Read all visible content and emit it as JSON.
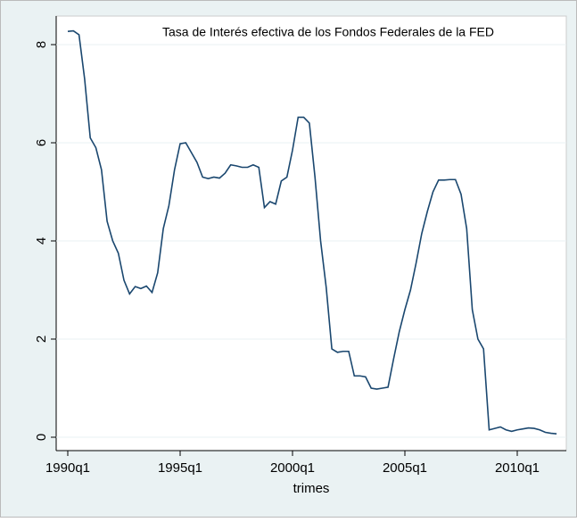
{
  "chart_data": {
    "type": "line",
    "title": "Tasa de Interés  efectiva de los Fondos Federales de la FED",
    "x_label": "trimes",
    "x": [
      "1990q1",
      "1990q2",
      "1990q3",
      "1990q4",
      "1991q1",
      "1991q2",
      "1991q3",
      "1991q4",
      "1992q1",
      "1992q2",
      "1992q3",
      "1992q4",
      "1993q1",
      "1993q2",
      "1993q3",
      "1993q4",
      "1994q1",
      "1994q2",
      "1994q3",
      "1994q4",
      "1995q1",
      "1995q2",
      "1995q3",
      "1995q4",
      "1996q1",
      "1996q2",
      "1996q3",
      "1996q4",
      "1997q1",
      "1997q2",
      "1997q3",
      "1997q4",
      "1998q1",
      "1998q2",
      "1998q3",
      "1998q4",
      "1999q1",
      "1999q2",
      "1999q3",
      "1999q4",
      "2000q1",
      "2000q2",
      "2000q3",
      "2000q4",
      "2001q1",
      "2001q2",
      "2001q3",
      "2001q4",
      "2002q1",
      "2002q2",
      "2002q3",
      "2002q4",
      "2003q1",
      "2003q2",
      "2003q3",
      "2003q4",
      "2004q1",
      "2004q2",
      "2004q3",
      "2004q4",
      "2005q1",
      "2005q2",
      "2005q3",
      "2005q4",
      "2006q1",
      "2006q2",
      "2006q3",
      "2006q4",
      "2007q1",
      "2007q2",
      "2007q3",
      "2007q4",
      "2008q1",
      "2008q2",
      "2008q3",
      "2008q4",
      "2009q1",
      "2009q2",
      "2009q3",
      "2009q4",
      "2010q1",
      "2010q2",
      "2010q3",
      "2010q4",
      "2011q1",
      "2011q2",
      "2011q3",
      "2011q4"
    ],
    "series": [
      {
        "color": "#1a476f",
        "values": [
          8.27,
          8.28,
          8.2,
          7.3,
          6.1,
          5.9,
          5.45,
          4.4,
          4.0,
          3.75,
          3.2,
          2.92,
          3.07,
          3.03,
          3.08,
          2.95,
          3.35,
          4.25,
          4.72,
          5.45,
          5.98,
          6.0,
          5.8,
          5.6,
          5.3,
          5.27,
          5.3,
          5.28,
          5.38,
          5.55,
          5.53,
          5.5,
          5.5,
          5.55,
          5.5,
          4.68,
          4.8,
          4.75,
          5.22,
          5.3,
          5.85,
          6.52,
          6.52,
          6.4,
          5.3,
          4.0,
          3.05,
          1.8,
          1.73,
          1.75,
          1.75,
          1.25,
          1.25,
          1.23,
          1.0,
          0.98,
          1.0,
          1.02,
          1.6,
          2.15,
          2.6,
          3.0,
          3.55,
          4.15,
          4.6,
          5.0,
          5.24,
          5.24,
          5.25,
          5.25,
          4.95,
          4.25,
          2.6,
          2.0,
          1.8,
          0.15,
          0.18,
          0.21,
          0.15,
          0.12,
          0.15,
          0.17,
          0.19,
          0.18,
          0.15,
          0.1,
          0.08,
          0.07
        ]
      }
    ],
    "xticks": [
      "1990q1",
      "1995q1",
      "2000q1",
      "2005q1",
      "2010q1"
    ],
    "ylim": [
      0,
      8.6
    ],
    "yticks": [
      0,
      2,
      4,
      6,
      8
    ],
    "grid": true
  }
}
